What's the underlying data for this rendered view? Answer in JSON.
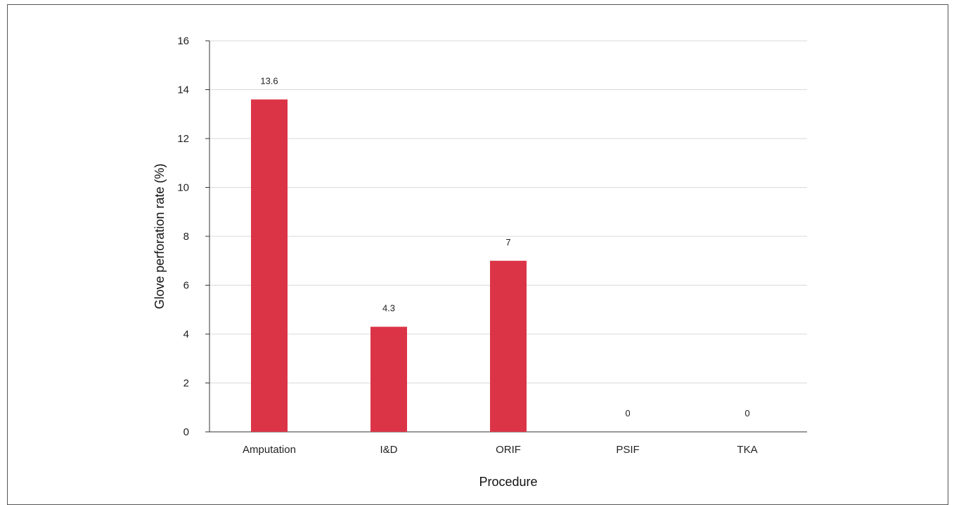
{
  "chart_data": {
    "type": "bar",
    "title": "",
    "xlabel": "Procedure",
    "ylabel": "Glove perforation rate (%)",
    "categories": [
      "Amputation",
      "I&D",
      "ORIF",
      "PSIF",
      "TKA"
    ],
    "values": [
      13.6,
      4.3,
      7,
      0,
      0
    ],
    "data_labels": [
      "13.6",
      "4.3",
      "7",
      "0",
      "0"
    ],
    "ylim": [
      0,
      16
    ],
    "yticks": [
      0,
      2,
      4,
      6,
      8,
      10,
      12,
      14,
      16
    ],
    "grid": true,
    "legend": "none",
    "bar_color": "#dc3447"
  }
}
